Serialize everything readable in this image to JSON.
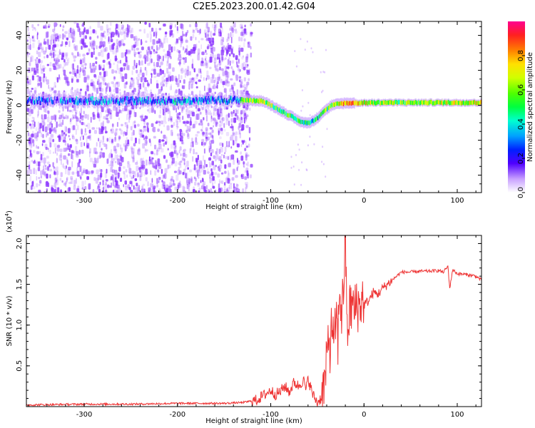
{
  "title": "C2E5.2023.200.01.42.G04",
  "colors": {
    "ridge_low": "#6a00f0",
    "ridge_mid": "#00ffd0",
    "ridge_high": "#ff2020",
    "noise": "#8a33ff",
    "snr_line": "#ee3333"
  },
  "chart_data": [
    {
      "type": "heatmap",
      "xlabel": "Height of straight line (km)",
      "ylabel": "Frequency (Hz)",
      "xlim": [
        -362,
        126
      ],
      "ylim": [
        -50,
        48
      ],
      "xticks": [
        -300,
        -200,
        -100,
        0,
        100
      ],
      "yticks": [
        -40,
        -20,
        0,
        20,
        40
      ],
      "colorbar": {
        "label": "Normalized spectral amplitude",
        "range": [
          0.0,
          1.0
        ],
        "ticks": [
          0.0,
          0.2,
          0.4,
          0.6,
          0.8
        ],
        "colormap": "hsv"
      },
      "ridge_frequency": {
        "x": [
          -362,
          -300,
          -200,
          -130,
          -110,
          -100,
          -90,
          -80,
          -70,
          -65,
          -60,
          -55,
          -50,
          -45,
          -40,
          -35,
          -30,
          -25,
          -20,
          -15,
          -10,
          0,
          20,
          50,
          100,
          126
        ],
        "y": [
          2.5,
          2.5,
          2.5,
          3,
          2.5,
          0,
          -3,
          -6,
          -9,
          -10,
          -10,
          -9,
          -7,
          -4,
          -2,
          0,
          0.5,
          1,
          1.2,
          1.3,
          1.3,
          1.4,
          1.5,
          1.5,
          1.5,
          1.5
        ]
      },
      "ridge_amplitude": {
        "x": [
          -362,
          -200,
          -135,
          -130,
          -110,
          -90,
          -70,
          -50,
          -35,
          -20,
          0,
          50,
          126
        ],
        "y": [
          0.3,
          0.35,
          0.35,
          0.6,
          0.65,
          0.55,
          0.55,
          0.45,
          0.6,
          0.85,
          0.7,
          0.6,
          0.75
        ]
      },
      "noise_band_x": [
        -362,
        -130
      ]
    },
    {
      "type": "line",
      "xlabel": "Height of straight line (km)",
      "ylabel": "SNR (10 * v/v)",
      "ylabel_multiplier": "(x10",
      "ylabel_multiplier_exp": "4",
      "ylabel_multiplier_close": ")",
      "xlim": [
        -362,
        126
      ],
      "ylim": [
        0,
        2.1
      ],
      "xticks": [
        -300,
        -200,
        -100,
        0,
        100
      ],
      "yticks": [
        0.5,
        1.0,
        1.5,
        2.0
      ],
      "series": [
        {
          "x": [
            -362,
            -300,
            -250,
            -200,
            -150,
            -130,
            -115,
            -110,
            -105,
            -100,
            -95,
            -90,
            -85,
            -80,
            -75,
            -70,
            -65,
            -62,
            -60,
            -55,
            -50,
            -45,
            -42,
            -40,
            -38,
            -36,
            -34,
            -32,
            -30,
            -28,
            -26,
            -24,
            -22,
            -20,
            -18,
            -15,
            -12,
            -10,
            -8,
            -5,
            -2,
            0,
            5,
            10,
            15,
            20,
            25,
            30,
            35,
            40,
            50,
            60,
            70,
            80,
            85,
            90,
            92,
            95,
            100,
            110,
            120,
            126
          ],
          "y": [
            0.02,
            0.03,
            0.03,
            0.04,
            0.04,
            0.05,
            0.08,
            0.12,
            0.16,
            0.2,
            0.15,
            0.18,
            0.25,
            0.18,
            0.3,
            0.25,
            0.33,
            0.2,
            0.35,
            0.15,
            0.05,
            0.12,
            0.3,
            0.5,
            0.9,
            0.7,
            1.1,
            0.6,
            1.15,
            0.8,
            1.5,
            1.1,
            1.45,
            2.1,
            0.9,
            1.2,
            1.25,
            1.15,
            1.3,
            1.2,
            1.35,
            1.25,
            1.3,
            1.4,
            1.38,
            1.45,
            1.5,
            1.55,
            1.6,
            1.65,
            1.65,
            1.66,
            1.66,
            1.67,
            1.65,
            1.72,
            1.45,
            1.68,
            1.63,
            1.62,
            1.6,
            1.55
          ]
        }
      ]
    }
  ]
}
